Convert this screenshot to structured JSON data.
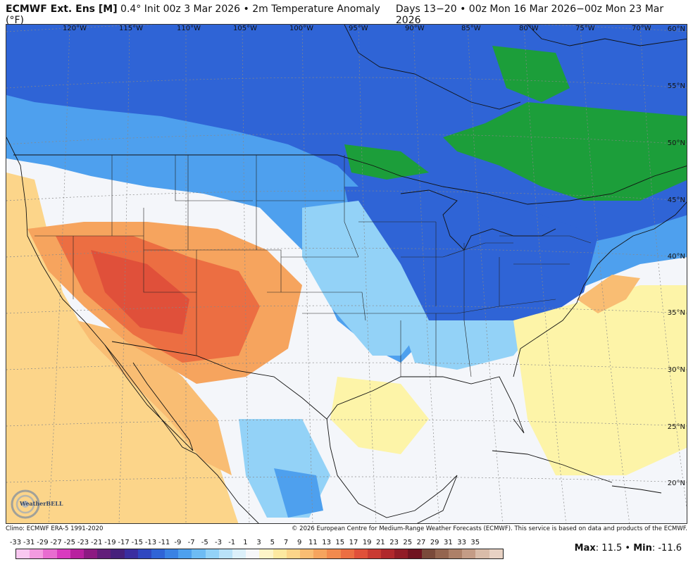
{
  "header": {
    "model_bold": "ECMWF Ext. Ens [M]",
    "model_rest": " 0.4° Init 00z 3 Mar 2026 • 2m Temperature Anomaly (°F)",
    "valid": "Days 13−20 • 00z Mon 16 Mar 2026−00z Mon 23 Mar 2026"
  },
  "footer": {
    "climo": "Climo: ECMWF ERA-5 1991-2020",
    "copyright": "© 2026 European Centre for Medium-Range Weather Forecasts (ECMWF). This service is based on data and products of the ECMWF."
  },
  "logo": {
    "text": "WeatherBELL",
    "icon": "swirl-logo-icon"
  },
  "longitude_labels": [
    "120°W",
    "115°W",
    "110°W",
    "105°W",
    "100°W",
    "95°W",
    "90°W",
    "85°W",
    "80°W",
    "75°W",
    "70°W"
  ],
  "latitude_labels": [
    "60°N",
    "55°N",
    "50°N",
    "45°N",
    "40°N",
    "35°N",
    "30°N",
    "25°N",
    "20°N"
  ],
  "colorbar": {
    "labels": [
      "-33",
      "-31",
      "-29",
      "-27",
      "-25",
      "-23",
      "-21",
      "-19",
      "-17",
      "-15",
      "-13",
      "-11",
      "-9",
      "-7",
      "-5",
      "-3",
      "-1",
      "1",
      "3",
      "5",
      "7",
      "9",
      "11",
      "13",
      "15",
      "17",
      "19",
      "21",
      "23",
      "25",
      "27",
      "29",
      "31",
      "33",
      "35"
    ],
    "colors": [
      "#f9c8f0",
      "#f39be0",
      "#e86cd0",
      "#d93bbf",
      "#b8209f",
      "#8c1a82",
      "#621e7a",
      "#46207c",
      "#3a2ea0",
      "#2f47c0",
      "#2f64d6",
      "#3a82e4",
      "#4ea0ee",
      "#6ebcf4",
      "#93d2f7",
      "#b9e2f8",
      "#dcf0fa",
      "#f6f7f9",
      "#fdf4c8",
      "#fde9a0",
      "#fcd58a",
      "#f9bd73",
      "#f6a45e",
      "#f28a4e",
      "#ec6e42",
      "#e0503a",
      "#c93a32",
      "#b0282c",
      "#911c26",
      "#701420",
      "#7a4a3a",
      "#94654f",
      "#ad8068",
      "#c49c86",
      "#d9bca9",
      "#e8d2c4"
    ]
  },
  "stats": {
    "max_label": "Max",
    "max_value": ": 11.5",
    "min_label": "Min",
    "min_value": ": -11.6",
    "separator": " • "
  },
  "colors": {
    "cold_strong": "#2f64d6",
    "cold": "#4ea0ee",
    "cool": "#93d2f7",
    "neutral": "#f4f6fa",
    "warm_light": "#fdf4a8",
    "warm": "#f9bd73",
    "warm_strong": "#ec6e42",
    "green_anom": "#1c9e3a"
  }
}
